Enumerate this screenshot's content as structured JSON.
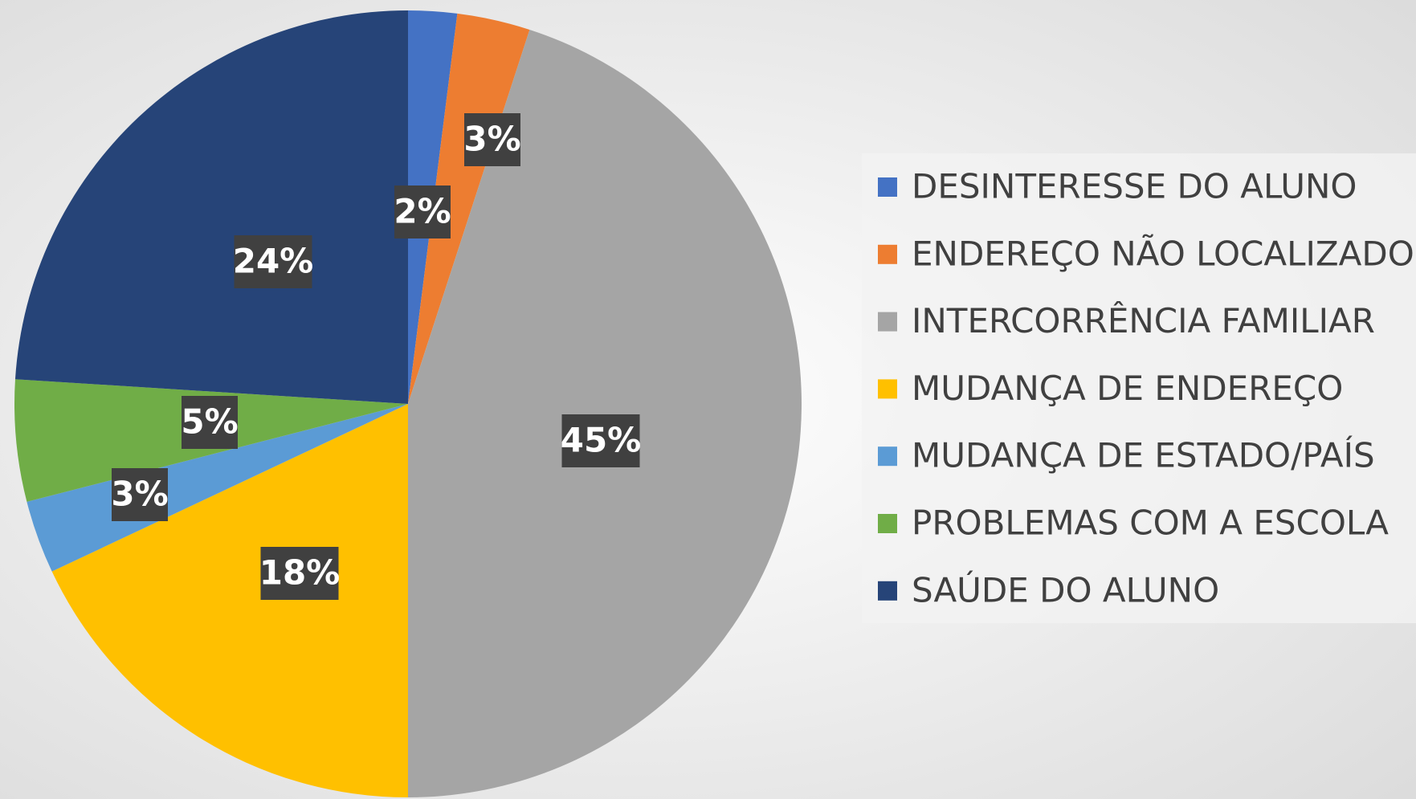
{
  "chart_data": {
    "type": "pie",
    "categories": [
      "DESINTERESSE DO ALUNO",
      "ENDEREÇO NÃO LOCALIZADO",
      "INTERCORRÊNCIA FAMILIAR",
      "MUDANÇA DE ENDEREÇO",
      "MUDANÇA DE ESTADO/PAÍS",
      "PROBLEMAS COM A ESCOLA",
      "SAÚDE DO ALUNO"
    ],
    "values": [
      2,
      3,
      45,
      18,
      3,
      5,
      24
    ],
    "value_labels": [
      "2%",
      "3%",
      "45%",
      "18%",
      "3%",
      "5%",
      "24%"
    ],
    "colors": [
      "#4472c4",
      "#ed7d31",
      "#a5a5a5",
      "#ffc000",
      "#5b9bd5",
      "#70ad47",
      "#264478"
    ],
    "legend": "right"
  }
}
